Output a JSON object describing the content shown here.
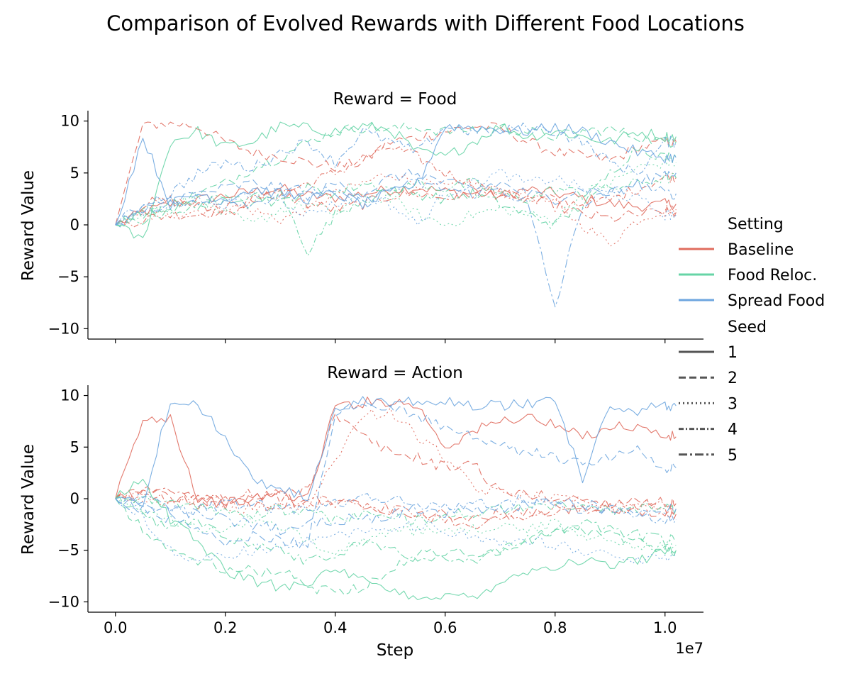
{
  "figure": {
    "title": "Comparison of Evolved Rewards with Different Food Locations",
    "xlabel": "Step",
    "x_offset_label": "1e7"
  },
  "legend": {
    "setting_title": "Setting",
    "seed_title": "Seed",
    "settings": [
      {
        "name": "Baseline",
        "color": "#e06c5e"
      },
      {
        "name": "Food Reloc.",
        "color": "#66d4a6"
      },
      {
        "name": "Spread Food",
        "color": "#6ea6df"
      }
    ],
    "seeds": [
      {
        "name": "1",
        "dash": "solid"
      },
      {
        "name": "2",
        "dash": "dashed"
      },
      {
        "name": "3",
        "dash": "dotted"
      },
      {
        "name": "4",
        "dash": "dashdot-short"
      },
      {
        "name": "5",
        "dash": "dashdot-long"
      }
    ],
    "placement": "right"
  },
  "chart_data": [
    {
      "type": "line",
      "title": "Reward = Food",
      "ylabel": "Reward Value",
      "xlim": [
        -0.05,
        1.07
      ],
      "ylim": [
        -11,
        11
      ],
      "xticks": [
        0.0,
        0.2,
        0.4,
        0.6,
        0.8,
        1.0
      ],
      "xtick_labels": [
        "0.0",
        "0.2",
        "0.4",
        "0.6",
        "0.8",
        "1.0"
      ],
      "yticks": [
        10,
        5,
        0,
        -5,
        -10
      ],
      "ytick_labels": [
        "10",
        "5",
        "0",
        "−5",
        "−10"
      ],
      "x": [
        0.0,
        0.05,
        0.1,
        0.15,
        0.2,
        0.25,
        0.3,
        0.35,
        0.4,
        0.45,
        0.5,
        0.55,
        0.6,
        0.65,
        0.7,
        0.75,
        0.8,
        0.85,
        0.9,
        0.95,
        1.0,
        1.02
      ],
      "series": [
        {
          "setting": "Baseline",
          "seed": "1",
          "values": [
            0,
            1.2,
            2.0,
            2.4,
            2.8,
            3.2,
            3.5,
            2.8,
            2.6,
            3.0,
            3.4,
            3.6,
            3.2,
            3.0,
            2.8,
            3.4,
            3.0,
            2.6,
            2.0,
            1.8,
            2.0,
            2.0
          ]
        },
        {
          "setting": "Baseline",
          "seed": "2",
          "values": [
            0,
            9.6,
            9.8,
            9.5,
            8.0,
            7.0,
            6.6,
            6.0,
            5.6,
            6.0,
            8.0,
            8.4,
            9.0,
            9.5,
            9.3,
            8.0,
            7.0,
            6.6,
            6.2,
            7.4,
            8.0,
            8.0
          ]
        },
        {
          "setting": "Baseline",
          "seed": "3",
          "values": [
            0,
            0.8,
            1.0,
            1.4,
            1.8,
            1.4,
            0.5,
            1.5,
            3.0,
            4.0,
            5.0,
            4.0,
            3.6,
            4.0,
            3.2,
            2.8,
            2.0,
            0.0,
            -1.8,
            0.5,
            1.5,
            1.5
          ]
        },
        {
          "setting": "Baseline",
          "seed": "4",
          "values": [
            0,
            0.5,
            1.0,
            1.0,
            1.6,
            2.4,
            3.0,
            4.0,
            5.0,
            6.4,
            7.5,
            6.5,
            5.0,
            4.0,
            3.0,
            2.6,
            2.4,
            2.0,
            2.4,
            3.5,
            4.6,
            4.6
          ]
        },
        {
          "setting": "Baseline",
          "seed": "5",
          "values": [
            0,
            2.0,
            2.4,
            1.8,
            1.0,
            2.5,
            3.0,
            2.0,
            1.5,
            2.0,
            2.8,
            3.0,
            2.6,
            3.0,
            3.0,
            2.4,
            1.8,
            1.0,
            0.6,
            1.0,
            1.2,
            1.2
          ]
        },
        {
          "setting": "Food Reloc.",
          "seed": "1",
          "values": [
            0,
            -1.5,
            8.0,
            9.0,
            7.5,
            8.0,
            9.5,
            9.3,
            9.0,
            9.5,
            9.2,
            7.0,
            6.5,
            8.0,
            9.5,
            8.5,
            9.0,
            8.5,
            8.0,
            9.0,
            8.5,
            8.5
          ]
        },
        {
          "setting": "Food Reloc.",
          "seed": "2",
          "values": [
            0,
            1.0,
            2.0,
            3.0,
            4.0,
            5.5,
            6.5,
            8.0,
            9.0,
            9.4,
            9.2,
            9.4,
            9.0,
            9.2,
            9.4,
            9.0,
            8.5,
            9.0,
            9.2,
            8.5,
            8.0,
            8.0
          ]
        },
        {
          "setting": "Food Reloc.",
          "seed": "3",
          "values": [
            0,
            1.0,
            2.0,
            2.5,
            1.0,
            0.0,
            1.5,
            2.0,
            1.0,
            3.0,
            2.5,
            1.0,
            0.0,
            1.0,
            1.5,
            1.0,
            0.5,
            3.0,
            4.0,
            5.5,
            6.0,
            6.0
          ]
        },
        {
          "setting": "Food Reloc.",
          "seed": "4",
          "values": [
            0,
            1.5,
            1.2,
            2.0,
            2.5,
            2.0,
            3.0,
            -2.5,
            1.0,
            2.5,
            3.0,
            4.0,
            3.5,
            4.0,
            3.0,
            2.5,
            3.5,
            3.0,
            3.5,
            4.0,
            4.5,
            4.5
          ]
        },
        {
          "setting": "Food Reloc.",
          "seed": "5",
          "values": [
            0,
            0.5,
            1.5,
            2.0,
            2.5,
            3.0,
            2.0,
            3.5,
            3.0,
            4.0,
            3.5,
            3.0,
            2.5,
            3.0,
            2.0,
            1.0,
            0.0,
            2.0,
            5.0,
            7.5,
            6.5,
            6.5
          ]
        },
        {
          "setting": "Spread Food",
          "seed": "1",
          "values": [
            0,
            8.5,
            2.0,
            3.0,
            2.5,
            3.5,
            3.0,
            2.5,
            3.0,
            2.0,
            3.0,
            4.0,
            9.5,
            9.4,
            9.2,
            9.0,
            9.4,
            9.0,
            8.0,
            7.0,
            6.5,
            6.5
          ]
        },
        {
          "setting": "Spread Food",
          "seed": "2",
          "values": [
            0,
            1.5,
            2.5,
            3.0,
            3.5,
            4.0,
            3.5,
            2.5,
            4.0,
            3.0,
            4.5,
            5.0,
            4.0,
            3.5,
            4.0,
            3.0,
            2.5,
            3.5,
            3.0,
            4.0,
            5.0,
            5.0
          ]
        },
        {
          "setting": "Spread Food",
          "seed": "3",
          "values": [
            0,
            1.0,
            2.0,
            2.5,
            2.0,
            3.0,
            2.5,
            1.0,
            2.0,
            3.0,
            2.0,
            0.0,
            3.0,
            4.0,
            5.0,
            4.0,
            4.5,
            3.5,
            3.0,
            2.5,
            1.0,
            1.0
          ]
        },
        {
          "setting": "Spread Food",
          "seed": "4",
          "values": [
            0,
            2.0,
            3.0,
            5.0,
            6.0,
            5.5,
            7.0,
            8.0,
            6.0,
            9.0,
            8.0,
            7.0,
            9.5,
            9.0,
            9.0,
            9.4,
            9.0,
            8.0,
            6.0,
            5.0,
            8.0,
            8.0
          ]
        },
        {
          "setting": "Spread Food",
          "seed": "5",
          "values": [
            0,
            1.5,
            2.0,
            2.0,
            2.5,
            2.0,
            3.0,
            3.5,
            3.0,
            2.0,
            3.5,
            4.0,
            3.5,
            3.0,
            3.5,
            2.0,
            -8.0,
            2.0,
            3.0,
            4.0,
            3.0,
            3.0
          ]
        }
      ]
    },
    {
      "type": "line",
      "title": "Reward = Action",
      "ylabel": "Reward Value",
      "xlim": [
        -0.05,
        1.07
      ],
      "ylim": [
        -11,
        11
      ],
      "xticks": [
        0.0,
        0.2,
        0.4,
        0.6,
        0.8,
        1.0
      ],
      "xtick_labels": [
        "0.0",
        "0.2",
        "0.4",
        "0.6",
        "0.8",
        "1.0"
      ],
      "yticks": [
        10,
        5,
        0,
        -5,
        -10
      ],
      "ytick_labels": [
        "10",
        "5",
        "0",
        "−5",
        "−10"
      ],
      "x": [
        0.0,
        0.05,
        0.1,
        0.15,
        0.2,
        0.25,
        0.3,
        0.35,
        0.4,
        0.45,
        0.5,
        0.55,
        0.6,
        0.65,
        0.7,
        0.75,
        0.8,
        0.85,
        0.9,
        0.95,
        1.0,
        1.02
      ],
      "series": [
        {
          "setting": "Baseline",
          "seed": "1",
          "values": [
            0,
            7.5,
            8.0,
            0.0,
            -0.5,
            0.0,
            0.5,
            0.0,
            9.0,
            9.3,
            9.5,
            9.0,
            5.0,
            6.5,
            7.5,
            8.0,
            7.0,
            6.0,
            7.0,
            7.0,
            6.0,
            6.0
          ]
        },
        {
          "setting": "Baseline",
          "seed": "2",
          "values": [
            0,
            1.0,
            0.0,
            -0.5,
            -0.5,
            0.0,
            0.5,
            1.0,
            8.0,
            6.0,
            4.5,
            4.0,
            3.0,
            3.5,
            0.5,
            0.5,
            0.0,
            0.0,
            -0.5,
            0.0,
            -0.5,
            -0.5
          ]
        },
        {
          "setting": "Baseline",
          "seed": "3",
          "values": [
            0,
            -0.5,
            -0.5,
            -0.5,
            -1.0,
            -1.0,
            -0.5,
            -1.0,
            4.0,
            8.0,
            8.5,
            6.0,
            4.0,
            1.0,
            0.5,
            0.5,
            0.0,
            0.0,
            -0.5,
            -0.5,
            -0.5,
            -0.5
          ]
        },
        {
          "setting": "Baseline",
          "seed": "4",
          "values": [
            0,
            0.5,
            0.0,
            0.0,
            0.0,
            0.5,
            0.0,
            -0.5,
            0.0,
            -0.5,
            -1.0,
            -1.5,
            -2.0,
            -2.5,
            -2.0,
            -1.5,
            -1.5,
            -1.0,
            -1.0,
            -1.0,
            -1.0,
            -1.0
          ]
        },
        {
          "setting": "Baseline",
          "seed": "5",
          "values": [
            0,
            0.5,
            0.5,
            0.0,
            0.0,
            -0.5,
            -0.5,
            0.0,
            -0.5,
            -0.5,
            -1.0,
            -1.5,
            -1.5,
            -2.0,
            -1.5,
            -1.5,
            -1.0,
            -1.0,
            -1.0,
            -1.5,
            -1.5,
            -1.5
          ]
        },
        {
          "setting": "Food Reloc.",
          "seed": "1",
          "values": [
            0,
            2.0,
            -2.0,
            -4.0,
            -7.0,
            -8.0,
            -8.5,
            -8.0,
            -7.0,
            -8.0,
            -9.0,
            -9.5,
            -9.5,
            -9.5,
            -8.0,
            -7.0,
            -6.5,
            -6.0,
            -6.5,
            -6.0,
            -5.0,
            -5.0
          ]
        },
        {
          "setting": "Food Reloc.",
          "seed": "2",
          "values": [
            0,
            -3.0,
            -5.0,
            -6.0,
            -7.0,
            -7.0,
            -7.0,
            -8.5,
            -9.0,
            -8.5,
            -7.0,
            -5.5,
            -5.0,
            -5.5,
            -5.0,
            -4.0,
            -3.0,
            -3.0,
            -3.5,
            -4.0,
            -5.0,
            -5.0
          ]
        },
        {
          "setting": "Food Reloc.",
          "seed": "3",
          "values": [
            0,
            -1.0,
            -2.0,
            -3.0,
            -3.0,
            -2.0,
            -3.0,
            -4.0,
            -5.0,
            -4.0,
            -3.5,
            -3.0,
            -3.5,
            -3.0,
            -2.5,
            -3.0,
            -2.5,
            -3.5,
            -4.0,
            -4.5,
            -4.5,
            -4.5
          ]
        },
        {
          "setting": "Food Reloc.",
          "seed": "4",
          "values": [
            0,
            0.0,
            -0.5,
            -1.0,
            -1.0,
            -1.5,
            -1.0,
            -1.5,
            -2.0,
            -1.5,
            -2.0,
            -2.0,
            -1.5,
            -1.5,
            -1.0,
            -1.0,
            -0.5,
            -1.0,
            -1.0,
            -1.0,
            -1.0,
            -1.0
          ]
        },
        {
          "setting": "Food Reloc.",
          "seed": "5",
          "values": [
            0,
            -1.5,
            -3.0,
            -2.0,
            -3.5,
            -4.5,
            -5.0,
            -6.0,
            -5.5,
            -4.0,
            -5.0,
            -6.0,
            -5.5,
            -6.0,
            -5.0,
            -4.0,
            -3.0,
            -2.5,
            -3.0,
            -3.5,
            -4.0,
            -4.0
          ]
        },
        {
          "setting": "Spread Food",
          "seed": "1",
          "values": [
            0,
            -0.5,
            9.5,
            9.0,
            6.0,
            2.0,
            1.0,
            0.0,
            9.0,
            9.5,
            9.3,
            9.6,
            9.6,
            9.0,
            9.0,
            9.3,
            9.6,
            2.0,
            9.0,
            8.5,
            9.0,
            9.0
          ]
        },
        {
          "setting": "Spread Food",
          "seed": "2",
          "values": [
            0,
            -1.0,
            -2.0,
            -3.0,
            -4.5,
            -3.5,
            -4.0,
            -4.5,
            8.5,
            9.0,
            9.0,
            8.0,
            7.0,
            6.0,
            5.0,
            4.5,
            4.0,
            3.5,
            4.0,
            5.0,
            3.0,
            3.0
          ]
        },
        {
          "setting": "Spread Food",
          "seed": "3",
          "values": [
            0,
            -2.0,
            -5.0,
            -6.0,
            -5.5,
            -5.0,
            -4.5,
            -4.0,
            -3.5,
            -3.0,
            -3.0,
            -2.5,
            -3.0,
            -4.0,
            -4.5,
            -4.0,
            -4.5,
            -5.0,
            -5.5,
            -6.0,
            -5.5,
            -5.5
          ]
        },
        {
          "setting": "Spread Food",
          "seed": "4",
          "values": [
            0,
            -0.5,
            -1.0,
            -1.0,
            -0.5,
            -0.5,
            -1.0,
            -1.0,
            -0.5,
            0.0,
            0.0,
            -0.5,
            -1.0,
            -0.5,
            -0.5,
            0.0,
            -0.5,
            -1.0,
            -1.0,
            -1.5,
            -2.0,
            -2.0
          ]
        },
        {
          "setting": "Spread Food",
          "seed": "5",
          "values": [
            0,
            0.5,
            -1.0,
            -1.5,
            -2.0,
            -2.5,
            -3.0,
            -2.5,
            -2.0,
            -2.0,
            -1.5,
            -1.0,
            -1.5,
            -1.0,
            -1.0,
            -0.5,
            0.0,
            -0.5,
            -1.0,
            -1.5,
            -1.0,
            -1.0
          ]
        }
      ]
    }
  ]
}
